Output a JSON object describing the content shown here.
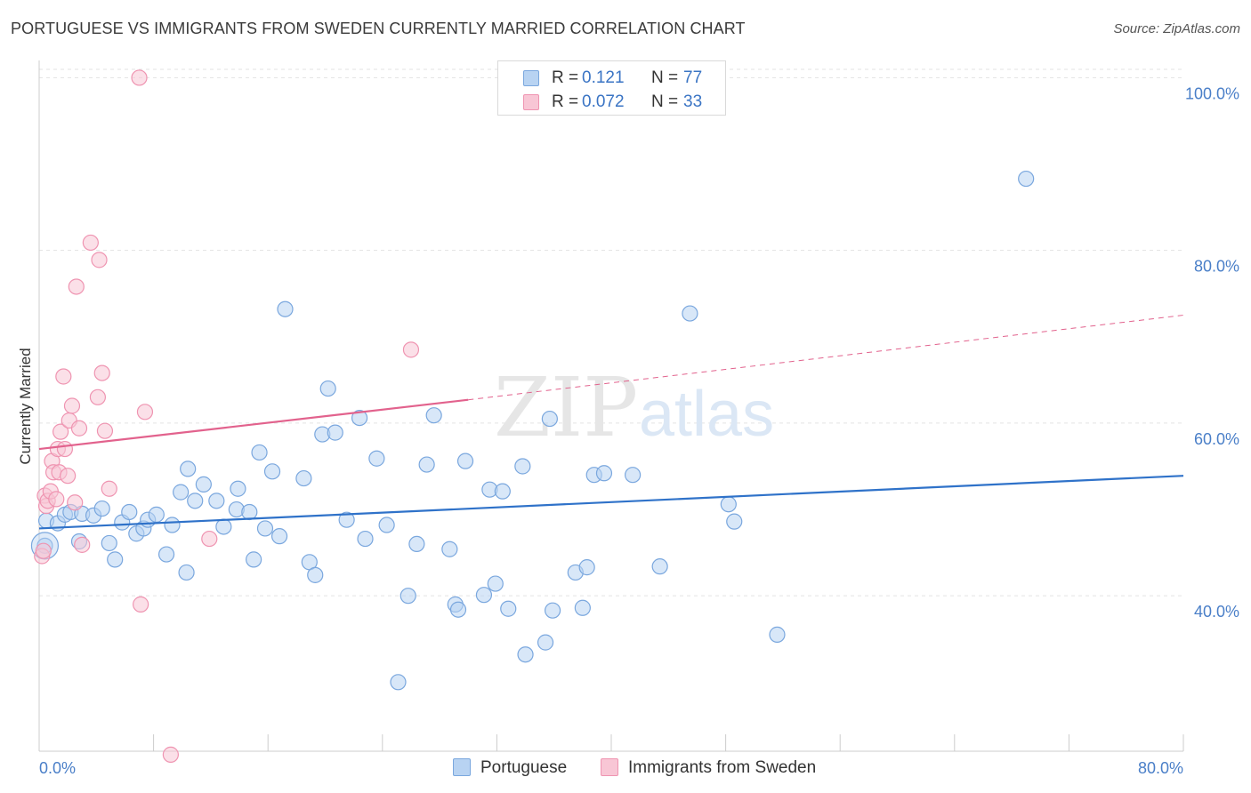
{
  "title": "PORTUGUESE VS IMMIGRANTS FROM SWEDEN CURRENTLY MARRIED CORRELATION CHART",
  "source": "Source: ZipAtlas.com",
  "watermark": {
    "zip": "ZIP",
    "atlas": "atlas"
  },
  "legend_top": [
    {
      "r_label": "R =",
      "r_value": "0.121",
      "n_label": "N =",
      "n_value": "77"
    },
    {
      "r_label": "R =",
      "r_value": "0.072",
      "n_label": "N =",
      "n_value": "33"
    }
  ],
  "legend_bottom": [
    {
      "label": "Portuguese"
    },
    {
      "label": "Immigrants from Sweden"
    }
  ],
  "colors": {
    "portuguese_fill": "#b8d3f2",
    "portuguese_stroke": "#7aa7de",
    "portuguese_line": "#2f72c9",
    "sweden_fill": "#f8c6d5",
    "sweden_stroke": "#ef94b1",
    "sweden_line": "#e2628d",
    "tick_label": "#4a7fc8",
    "grid": "#e3e3e3"
  },
  "chart_data": {
    "type": "scatter",
    "title": "PORTUGUESE VS IMMIGRANTS FROM SWEDEN CURRENTLY MARRIED CORRELATION CHART",
    "xlabel": "",
    "ylabel": "Currently Married",
    "xlim": [
      0,
      80
    ],
    "ylim": [
      22,
      102
    ],
    "x_tick_labels": [
      "0.0%",
      "80.0%"
    ],
    "y_ticks": [
      40,
      60,
      80,
      100
    ],
    "y_tick_labels": [
      "40.0%",
      "60.0%",
      "80.0%",
      "100.0%"
    ],
    "grid": "horizontal dashed",
    "legend_placement": "top-center and bottom",
    "series": [
      {
        "name": "Portuguese",
        "r": 0.121,
        "n": 77,
        "trend": {
          "x": [
            0,
            80
          ],
          "y": [
            47.8,
            53.9
          ]
        },
        "points": [
          [
            0.5,
            48.7
          ],
          [
            0.4,
            45.8
          ],
          [
            1.3,
            48.4
          ],
          [
            1.8,
            49.4
          ],
          [
            2.2,
            49.7
          ],
          [
            2.8,
            46.3
          ],
          [
            3.0,
            49.5
          ],
          [
            3.8,
            49.3
          ],
          [
            4.4,
            50.1
          ],
          [
            4.9,
            46.1
          ],
          [
            5.3,
            44.2
          ],
          [
            5.8,
            48.5
          ],
          [
            6.3,
            49.7
          ],
          [
            6.8,
            47.2
          ],
          [
            7.3,
            47.8
          ],
          [
            7.6,
            48.8
          ],
          [
            8.2,
            49.4
          ],
          [
            8.9,
            44.8
          ],
          [
            9.3,
            48.2
          ],
          [
            9.9,
            52.0
          ],
          [
            10.3,
            42.7
          ],
          [
            10.4,
            54.7
          ],
          [
            10.9,
            51.0
          ],
          [
            11.5,
            52.9
          ],
          [
            12.4,
            51.0
          ],
          [
            12.9,
            48.0
          ],
          [
            13.8,
            50.0
          ],
          [
            13.9,
            52.4
          ],
          [
            14.7,
            49.7
          ],
          [
            15.0,
            44.2
          ],
          [
            15.4,
            56.6
          ],
          [
            15.8,
            47.8
          ],
          [
            16.3,
            54.4
          ],
          [
            16.8,
            46.9
          ],
          [
            17.2,
            73.2
          ],
          [
            18.5,
            53.6
          ],
          [
            18.9,
            43.9
          ],
          [
            19.3,
            42.4
          ],
          [
            19.8,
            58.7
          ],
          [
            20.2,
            64.0
          ],
          [
            20.7,
            58.9
          ],
          [
            21.5,
            48.8
          ],
          [
            22.4,
            60.6
          ],
          [
            22.8,
            46.6
          ],
          [
            23.6,
            55.9
          ],
          [
            24.3,
            48.2
          ],
          [
            25.1,
            30.0
          ],
          [
            25.8,
            40.0
          ],
          [
            26.4,
            46.0
          ],
          [
            27.1,
            55.2
          ],
          [
            27.6,
            60.9
          ],
          [
            28.7,
            45.4
          ],
          [
            29.1,
            39.0
          ],
          [
            29.3,
            38.4
          ],
          [
            29.8,
            55.6
          ],
          [
            31.1,
            40.1
          ],
          [
            31.5,
            52.3
          ],
          [
            31.9,
            41.4
          ],
          [
            32.4,
            52.1
          ],
          [
            32.8,
            38.5
          ],
          [
            33.8,
            55.0
          ],
          [
            34.0,
            33.2
          ],
          [
            35.4,
            34.6
          ],
          [
            35.7,
            60.5
          ],
          [
            35.9,
            38.3
          ],
          [
            37.5,
            42.7
          ],
          [
            38.0,
            38.6
          ],
          [
            38.3,
            43.3
          ],
          [
            38.8,
            54.0
          ],
          [
            39.5,
            54.2
          ],
          [
            41.5,
            54.0
          ],
          [
            43.4,
            43.4
          ],
          [
            45.5,
            72.7
          ],
          [
            48.2,
            50.6
          ],
          [
            48.6,
            48.6
          ],
          [
            51.6,
            35.5
          ],
          [
            69.0,
            88.3
          ]
        ]
      },
      {
        "name": "Immigrants from Sweden",
        "r": 0.072,
        "n": 33,
        "trend": {
          "x": [
            0,
            30
          ],
          "y": [
            57.0,
            62.7
          ]
        },
        "trend_extension": {
          "x": [
            30,
            80
          ],
          "y": [
            62.7,
            72.5
          ]
        },
        "points": [
          [
            0.2,
            44.6
          ],
          [
            0.4,
            51.6
          ],
          [
            0.5,
            50.4
          ],
          [
            0.6,
            51.0
          ],
          [
            0.8,
            52.1
          ],
          [
            0.9,
            55.6
          ],
          [
            1.0,
            54.3
          ],
          [
            1.2,
            51.2
          ],
          [
            1.3,
            57.0
          ],
          [
            1.4,
            54.3
          ],
          [
            1.5,
            59.0
          ],
          [
            1.7,
            65.4
          ],
          [
            1.8,
            57.0
          ],
          [
            2.0,
            53.9
          ],
          [
            2.1,
            60.3
          ],
          [
            2.3,
            62.0
          ],
          [
            2.5,
            50.8
          ],
          [
            2.6,
            75.8
          ],
          [
            2.8,
            59.4
          ],
          [
            3.0,
            45.9
          ],
          [
            3.6,
            80.9
          ],
          [
            4.1,
            63.0
          ],
          [
            4.2,
            78.9
          ],
          [
            4.4,
            65.8
          ],
          [
            4.6,
            59.1
          ],
          [
            4.9,
            52.4
          ],
          [
            7.1,
            39.0
          ],
          [
            7.4,
            61.3
          ],
          [
            9.2,
            21.6
          ],
          [
            11.9,
            46.6
          ],
          [
            26.0,
            68.5
          ],
          [
            7.0,
            100.0
          ],
          [
            0.3,
            45.2
          ]
        ]
      }
    ]
  }
}
